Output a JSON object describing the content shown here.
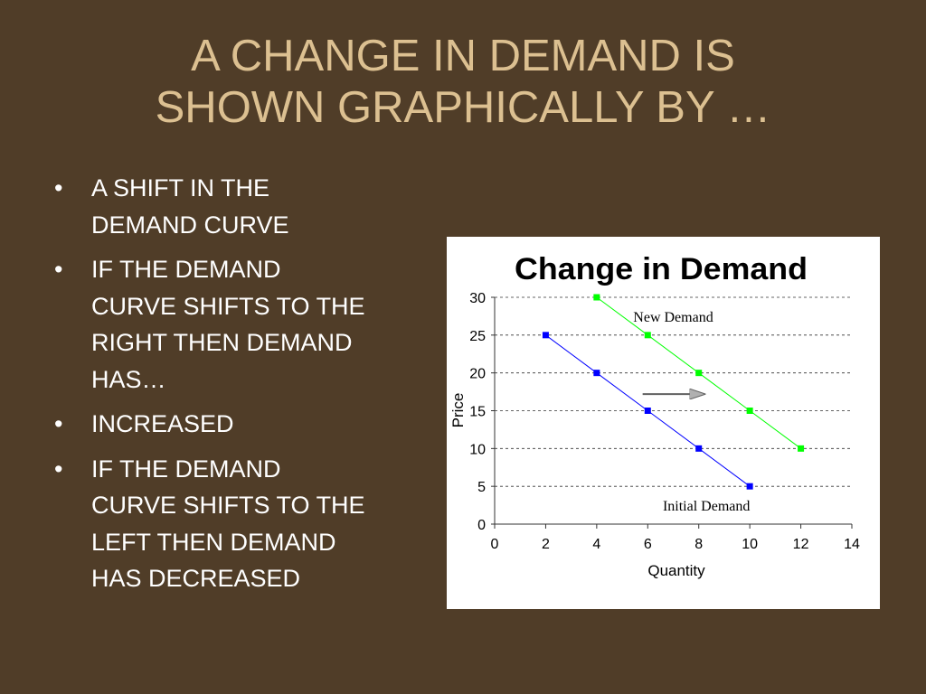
{
  "slide": {
    "title_line1": "A CHANGE IN DEMAND IS",
    "title_line2": "SHOWN GRAPHICALLY BY …",
    "background_color": "#503d28",
    "title_color": "#dcc091",
    "bullet_symbol": "•",
    "bullets": [
      {
        "lines": [
          "A SHIFT IN THE",
          "DEMAND CURVE"
        ]
      },
      {
        "lines": [
          "IF THE DEMAND",
          "CURVE SHIFTS TO THE",
          "RIGHT THEN DEMAND",
          "HAS…"
        ]
      },
      {
        "lines": [
          "INCREASED"
        ]
      },
      {
        "lines": [
          "IF THE DEMAND",
          "CURVE SHIFTS TO THE",
          "LEFT THEN DEMAND",
          "HAS DECREASED"
        ]
      }
    ]
  },
  "chart_data": {
    "type": "line",
    "title": "Change in Demand",
    "xlabel": "Quantity",
    "ylabel": "Price",
    "xlim": [
      0,
      14
    ],
    "ylim": [
      0,
      30
    ],
    "xticks": [
      "0",
      "2",
      "4",
      "6",
      "8",
      "10",
      "12",
      "14"
    ],
    "yticks": [
      "0",
      "5",
      "10",
      "15",
      "20",
      "25",
      "30"
    ],
    "grid": "horizontal dashed",
    "legend": "none",
    "series": [
      {
        "name": "Initial Demand",
        "color": "#0000ff",
        "points": [
          [
            2,
            25
          ],
          [
            4,
            20
          ],
          [
            6,
            15
          ],
          [
            8,
            10
          ],
          [
            10,
            5
          ]
        ]
      },
      {
        "name": "New Demand",
        "color": "#00ff00",
        "points": [
          [
            4,
            30
          ],
          [
            6,
            25
          ],
          [
            8,
            20
          ],
          [
            10,
            15
          ],
          [
            12,
            10
          ]
        ]
      }
    ],
    "annotations": [
      {
        "text": "New Demand",
        "x": 7,
        "y": 27.5
      },
      {
        "text": "Initial Demand",
        "x": 8.3,
        "y": 2.5
      }
    ],
    "arrow": {
      "from": [
        5.8,
        17.2
      ],
      "to": [
        8.2,
        17.2
      ],
      "meaning": "demand shifts right"
    }
  }
}
